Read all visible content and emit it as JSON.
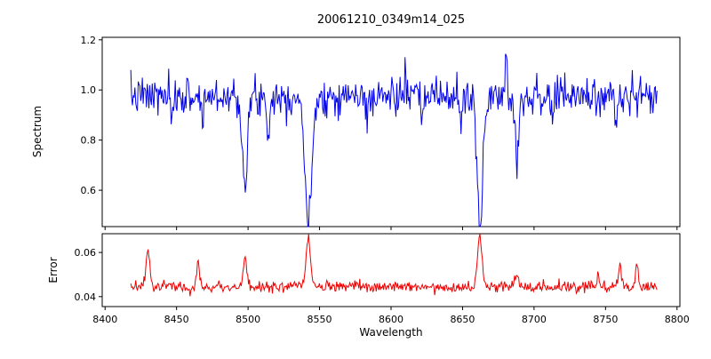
{
  "chart_data": {
    "type": "line",
    "title": "20061210_0349m14_025",
    "xlabel": "Wavelength",
    "grid": false,
    "legend": null,
    "x_start": 8418,
    "x_end": 8786,
    "n_points": 640,
    "seed": 7,
    "xlim": [
      8398,
      8802
    ],
    "xticks": [
      8400,
      8450,
      8500,
      8550,
      8600,
      8650,
      8700,
      8750,
      8800
    ],
    "xtick_labels": [
      "8400",
      "8450",
      "8500",
      "8550",
      "8600",
      "8650",
      "8700",
      "8750",
      "8800"
    ],
    "panels": [
      {
        "name": "spectrum",
        "ylabel": "Spectrum",
        "color": "#0000ee",
        "ylim": [
          0.455,
          1.21
        ],
        "yticks": [
          0.6,
          0.8,
          1.0,
          1.2
        ],
        "ytick_labels": [
          "0.6",
          "0.8",
          "1.0",
          "1.2"
        ],
        "baseline": 0.975,
        "noise_sigma": 0.038,
        "absorption_lines": [
          {
            "center": 8498.0,
            "depth": 0.37,
            "width": 1.7
          },
          {
            "center": 8542.1,
            "depth": 0.56,
            "width": 2.2
          },
          {
            "center": 8662.1,
            "depth": 0.53,
            "width": 2.0
          },
          {
            "center": 8688.0,
            "depth": 0.26,
            "width": 1.2
          },
          {
            "center": 8514.0,
            "depth": 0.14,
            "width": 1.0
          },
          {
            "center": 8447.0,
            "depth": 0.11,
            "width": 1.0
          },
          {
            "center": 8468.0,
            "depth": 0.09,
            "width": 0.9
          },
          {
            "center": 8583.0,
            "depth": 0.09,
            "width": 0.9
          },
          {
            "center": 8621.0,
            "depth": 0.1,
            "width": 0.9
          },
          {
            "center": 8649.0,
            "depth": 0.1,
            "width": 0.9
          },
          {
            "center": 8713.0,
            "depth": 0.09,
            "width": 0.9
          },
          {
            "center": 8757.0,
            "depth": 0.1,
            "width": 0.9
          }
        ],
        "emission_spikes": [
          {
            "center": 8680.5,
            "amp": 0.17,
            "width": 0.8
          },
          {
            "center": 8610.0,
            "amp": 0.07,
            "width": 0.7
          }
        ]
      },
      {
        "name": "error",
        "ylabel": "Error",
        "color": "#ee0000",
        "ylim": [
          0.0355,
          0.0685
        ],
        "yticks": [
          0.04,
          0.06
        ],
        "ytick_labels": [
          "0.04",
          "0.06"
        ],
        "baseline": 0.0445,
        "noise_sigma": 0.0012,
        "peaks": [
          {
            "center": 8430.0,
            "amp": 0.018,
            "width": 1.2
          },
          {
            "center": 8465.0,
            "amp": 0.011,
            "width": 1.0
          },
          {
            "center": 8498.0,
            "amp": 0.012,
            "width": 1.2
          },
          {
            "center": 8542.0,
            "amp": 0.022,
            "width": 1.5
          },
          {
            "center": 8662.0,
            "amp": 0.022,
            "width": 1.5
          },
          {
            "center": 8688.0,
            "amp": 0.006,
            "width": 1.0
          },
          {
            "center": 8745.0,
            "amp": 0.005,
            "width": 1.0
          },
          {
            "center": 8760.0,
            "amp": 0.0095,
            "width": 1.1
          },
          {
            "center": 8772.0,
            "amp": 0.01,
            "width": 1.0
          }
        ]
      }
    ]
  }
}
